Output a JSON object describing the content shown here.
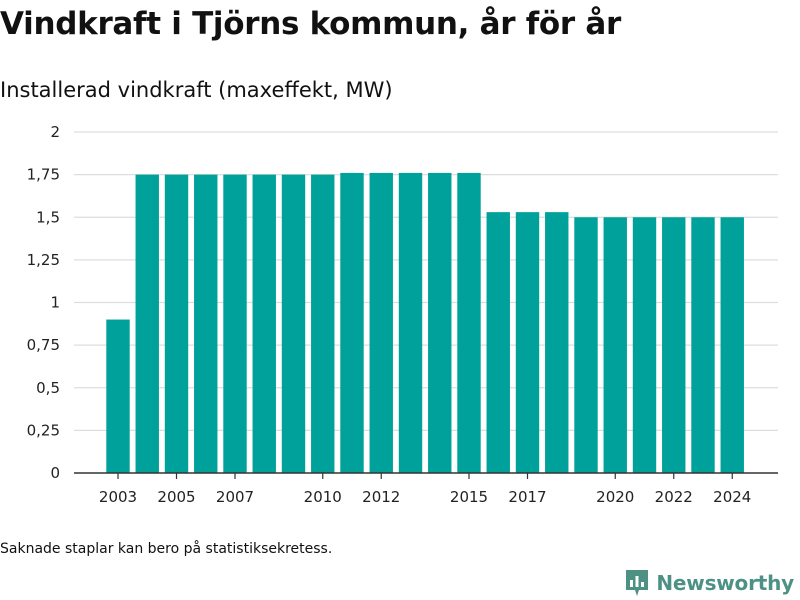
{
  "title": "Vindkraft i Tjörns kommun, år för år",
  "subtitle": "Installerad vindkraft (maxeffekt, MW)",
  "footnote": "Saknade staplar kan bero på statistiksekretess.",
  "brand": {
    "name": "Newsworthy",
    "icon": "newsworthy-logo-icon",
    "color": "#4d9185"
  },
  "chart_data": {
    "type": "bar",
    "title": "Vindkraft i Tjörns kommun, år för år",
    "subtitle": "Installerad vindkraft (maxeffekt, MW)",
    "xlabel": "",
    "ylabel": "",
    "categories": [
      "2003",
      "2004",
      "2005",
      "2006",
      "2007",
      "2008",
      "2009",
      "2010",
      "2011",
      "2012",
      "2013",
      "2014",
      "2015",
      "2016",
      "2017",
      "2018",
      "2019",
      "2020",
      "2021",
      "2022",
      "2023",
      "2024"
    ],
    "values": [
      0.9,
      1.75,
      1.75,
      1.75,
      1.75,
      1.75,
      1.75,
      1.75,
      1.76,
      1.76,
      1.76,
      1.76,
      1.76,
      1.53,
      1.53,
      1.53,
      1.5,
      1.5,
      1.5,
      1.5,
      1.5,
      1.5
    ],
    "x_tick_labels": [
      "2003",
      "2005",
      "2007",
      "2010",
      "2012",
      "2015",
      "2017",
      "2020",
      "2022",
      "2024"
    ],
    "y_ticks": [
      0,
      0.25,
      0.5,
      0.75,
      1,
      1.25,
      1.5,
      1.75,
      2
    ],
    "y_tick_labels": [
      "0",
      "0,25",
      "0,5",
      "0,75",
      "1",
      "1,25",
      "1,5",
      "1,75",
      "2"
    ],
    "ylim": [
      0,
      2
    ],
    "grid": true,
    "legend": "none",
    "bar_color": "#00a19a",
    "grid_color": "#dddddd",
    "axis_color": "#333333"
  }
}
